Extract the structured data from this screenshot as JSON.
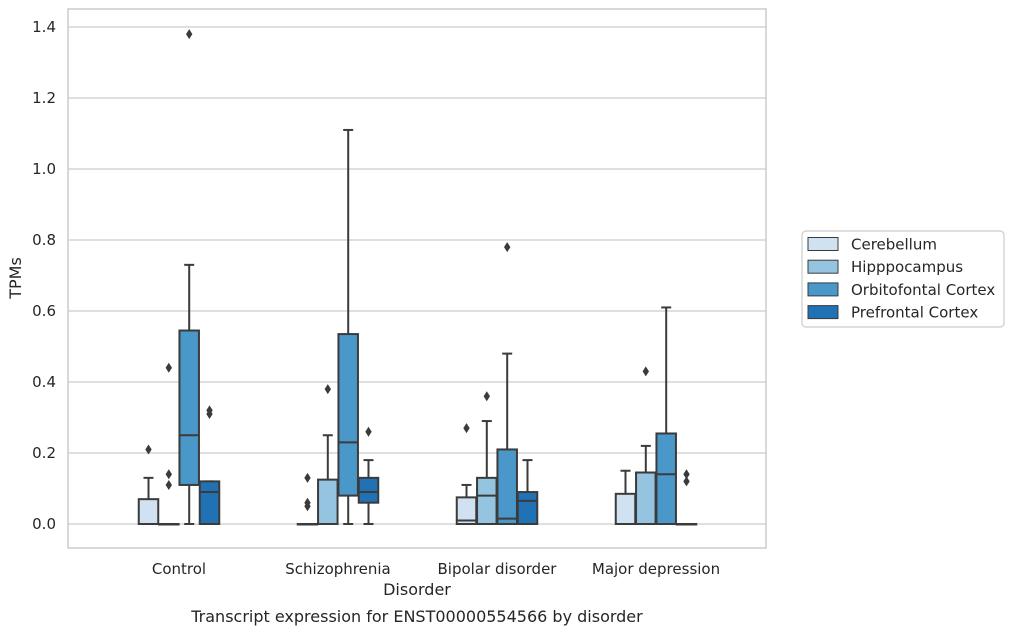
{
  "caption": "Transcript expression for ENST00000554566 by disorder",
  "chart_data": {
    "type": "box",
    "title": "",
    "xlabel": "Disorder",
    "ylabel": "TPMs",
    "ylim": [
      -0.066,
      1.45
    ],
    "yticks": [
      0.0,
      0.2,
      0.4,
      0.6,
      0.8,
      1.0,
      1.2,
      1.4
    ],
    "ytick_labels": [
      "0.0",
      "0.2",
      "0.4",
      "0.6",
      "0.8",
      "1.0",
      "1.2",
      "1.4"
    ],
    "grid": "horizontal",
    "legend_position": "outside-right",
    "categories": [
      "Control",
      "Schizophrenia",
      "Bipolar disorder",
      "Major depression"
    ],
    "series": [
      {
        "name": "Cerebellum",
        "color": "#d0e1f2",
        "boxes": [
          {
            "whislo": 0.0,
            "q1": 0.0,
            "med": 0.0,
            "q3": 0.07,
            "whishi": 0.13,
            "fliers": [
              0.21
            ]
          },
          {
            "whislo": 0.0,
            "q1": 0.0,
            "med": 0.0,
            "q3": 0.0,
            "whishi": 0.0,
            "fliers": [
              0.05,
              0.06,
              0.13
            ]
          },
          {
            "whislo": 0.0,
            "q1": 0.0,
            "med": 0.01,
            "q3": 0.075,
            "whishi": 0.11,
            "fliers": [
              0.27
            ]
          },
          {
            "whislo": 0.0,
            "q1": 0.0,
            "med": 0.0,
            "q3": 0.085,
            "whishi": 0.15,
            "fliers": []
          }
        ]
      },
      {
        "name": "Hipppocampus",
        "color": "#94c4df",
        "boxes": [
          {
            "whislo": 0.0,
            "q1": 0.0,
            "med": 0.0,
            "q3": 0.0,
            "whishi": 0.0,
            "fliers": [
              0.11,
              0.14,
              0.44
            ]
          },
          {
            "whislo": 0.0,
            "q1": 0.0,
            "med": 0.0,
            "q3": 0.125,
            "whishi": 0.25,
            "fliers": [
              0.38
            ]
          },
          {
            "whislo": 0.0,
            "q1": 0.0,
            "med": 0.08,
            "q3": 0.13,
            "whishi": 0.29,
            "fliers": [
              0.36
            ]
          },
          {
            "whislo": 0.0,
            "q1": 0.0,
            "med": 0.145,
            "q3": 0.145,
            "whishi": 0.22,
            "fliers": [
              0.43
            ]
          }
        ]
      },
      {
        "name": "Orbitofontal Cortex",
        "color": "#4a98c9",
        "boxes": [
          {
            "whislo": 0.0,
            "q1": 0.11,
            "med": 0.25,
            "q3": 0.545,
            "whishi": 0.73,
            "fliers": [
              1.38
            ]
          },
          {
            "whislo": 0.0,
            "q1": 0.08,
            "med": 0.23,
            "q3": 0.535,
            "whishi": 1.11,
            "fliers": []
          },
          {
            "whislo": 0.0,
            "q1": 0.0,
            "med": 0.015,
            "q3": 0.21,
            "whishi": 0.48,
            "fliers": [
              0.78
            ]
          },
          {
            "whislo": 0.0,
            "q1": 0.0,
            "med": 0.14,
            "q3": 0.255,
            "whishi": 0.61,
            "fliers": []
          }
        ]
      },
      {
        "name": "Prefrontal Cortex",
        "color": "#2171b5",
        "boxes": [
          {
            "whislo": 0.0,
            "q1": 0.0,
            "med": 0.09,
            "q3": 0.12,
            "whishi": 0.12,
            "fliers": [
              0.31,
              0.32
            ]
          },
          {
            "whislo": 0.0,
            "q1": 0.06,
            "med": 0.09,
            "q3": 0.13,
            "whishi": 0.18,
            "fliers": [
              0.26
            ]
          },
          {
            "whislo": 0.0,
            "q1": 0.0,
            "med": 0.065,
            "q3": 0.09,
            "whishi": 0.18,
            "fliers": []
          },
          {
            "whislo": 0.0,
            "q1": 0.0,
            "med": 0.0,
            "q3": 0.0,
            "whishi": 0.0,
            "fliers": [
              0.12,
              0.14
            ]
          }
        ]
      }
    ]
  }
}
